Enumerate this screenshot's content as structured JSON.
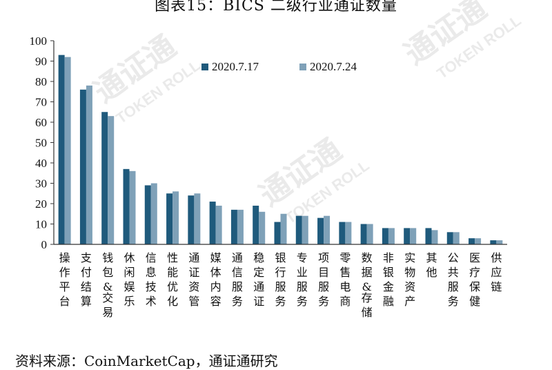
{
  "title": "图表15：BICS 二级行业通证数量",
  "source": "资料来源：CoinMarketCap，通证通研究",
  "watermarks": [
    "通证通",
    "TOKEN ROLL"
  ],
  "colors": {
    "series1": "#1f5a7c",
    "series2": "#7fa1b8",
    "axis": "#333333"
  },
  "chart_data": {
    "type": "bar",
    "title": "图表15：BICS 二级行业通证数量",
    "xlabel": "",
    "ylabel": "",
    "ylim": [
      0,
      100
    ],
    "yticks": [
      0,
      10,
      20,
      30,
      40,
      50,
      60,
      70,
      80,
      90,
      100
    ],
    "grid": false,
    "legend_position": "top-right",
    "categories": [
      "操作平台",
      "支付结算",
      "钱包&交易",
      "休闲娱乐",
      "信息技术",
      "性能优化",
      "通证资管",
      "媒体内容",
      "通信服务",
      "稳定通证",
      "银行服务",
      "专业服务",
      "项目服务",
      "零售电商",
      "数据&存储",
      "非银金融",
      "实物资产",
      "其他",
      "公共服务",
      "医疗保健",
      "供应链"
    ],
    "series": [
      {
        "name": "2020.7.17",
        "values": [
          93,
          76,
          65,
          37,
          29,
          25,
          24,
          21,
          17,
          19,
          11,
          14,
          13,
          11,
          10,
          8,
          8,
          8,
          6,
          3,
          2
        ]
      },
      {
        "name": "2020.7.24",
        "values": [
          92,
          78,
          63,
          36,
          30,
          26,
          25,
          19,
          17,
          16,
          15,
          14,
          14,
          11,
          10,
          8,
          8,
          7,
          6,
          3,
          2
        ]
      }
    ]
  }
}
